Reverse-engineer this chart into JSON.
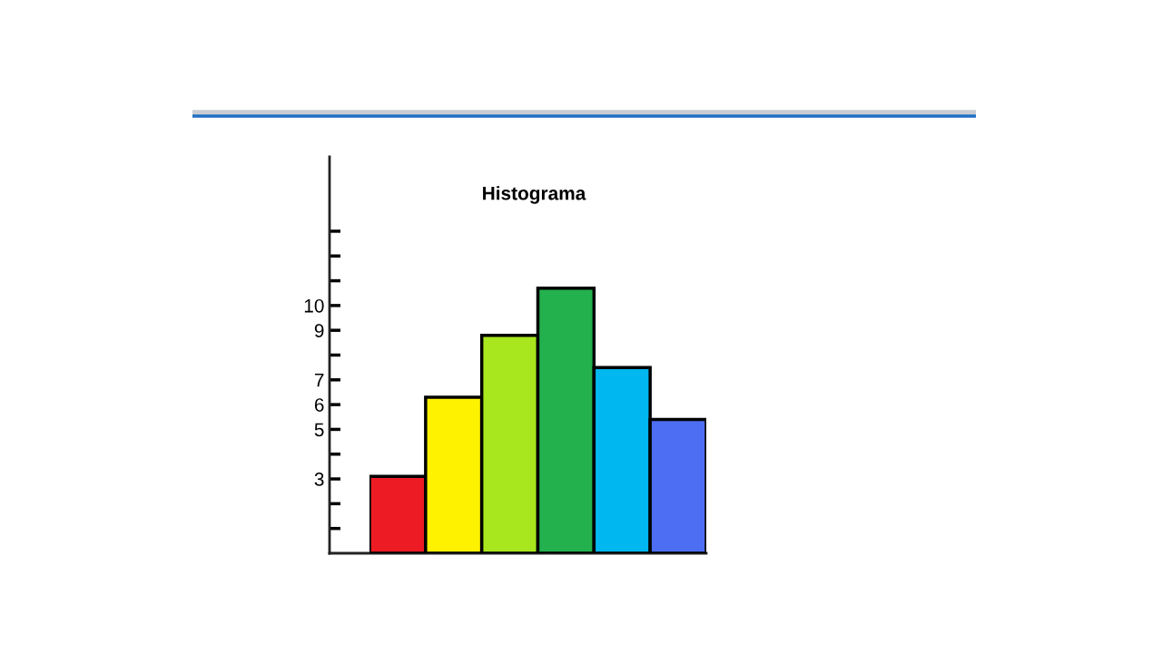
{
  "chart_data": {
    "type": "bar",
    "title": "Histograma",
    "categories": [
      null,
      null,
      null,
      null,
      null,
      null
    ],
    "values": [
      3.1,
      6.3,
      8.8,
      10.7,
      7.5,
      5.4
    ],
    "colors": [
      "#ed1c24",
      "#fff200",
      "#a8e61d",
      "#22b14c",
      "#00b7ef",
      "#4d6df3"
    ],
    "ylim": [
      0,
      16
    ],
    "yticks": [
      {
        "value": 1,
        "label": null
      },
      {
        "value": 2,
        "label": null
      },
      3,
      {
        "value": 4,
        "label": null
      },
      5,
      6,
      7,
      {
        "value": 8,
        "label": null
      },
      9,
      10,
      {
        "value": 11,
        "label": null
      },
      {
        "value": 12,
        "label": null
      },
      {
        "value": 13,
        "label": null
      }
    ],
    "tick_labels": "y"
  }
}
